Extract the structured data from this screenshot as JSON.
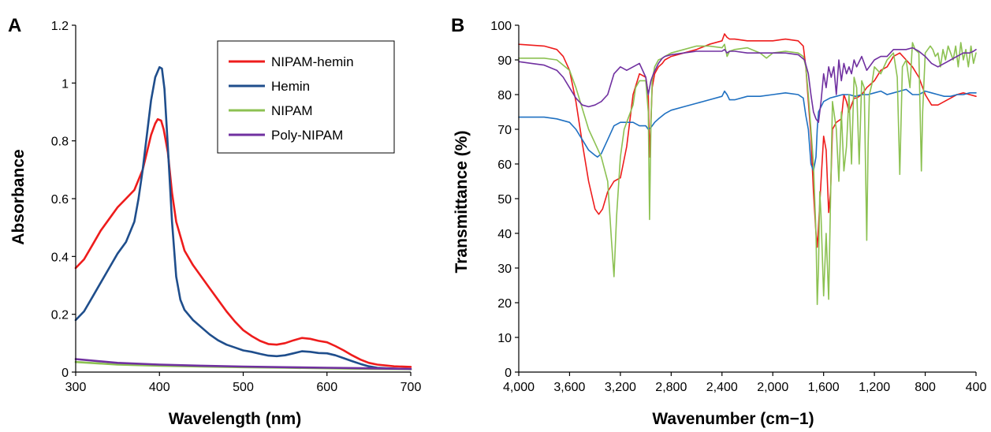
{
  "chart_data": [
    {
      "panel": "A",
      "type": "line",
      "xlabel": "Wavelength (nm)",
      "ylabel": "Absorbance",
      "xlim": [
        300,
        700
      ],
      "ylim": [
        0,
        1.2
      ],
      "x_ticks": [
        "300",
        "400",
        "500",
        "600",
        "700"
      ],
      "y_ticks": [
        "0",
        "0.2",
        "0.4",
        "0.6",
        "0.8",
        "1",
        "1.2"
      ],
      "legend": "top-right",
      "series": [
        {
          "name": "NIPAM-hemin",
          "color": "#ee1c1c",
          "x": [
            300,
            310,
            320,
            330,
            340,
            350,
            360,
            370,
            380,
            385,
            390,
            395,
            398,
            402,
            405,
            410,
            415,
            420,
            430,
            440,
            450,
            460,
            470,
            480,
            490,
            500,
            510,
            520,
            530,
            540,
            550,
            560,
            570,
            580,
            590,
            600,
            610,
            620,
            630,
            640,
            650,
            660,
            680,
            700
          ],
          "y": [
            0.36,
            0.39,
            0.44,
            0.49,
            0.53,
            0.57,
            0.6,
            0.63,
            0.7,
            0.76,
            0.82,
            0.86,
            0.875,
            0.87,
            0.84,
            0.76,
            0.62,
            0.52,
            0.42,
            0.37,
            0.33,
            0.29,
            0.25,
            0.21,
            0.175,
            0.145,
            0.125,
            0.108,
            0.097,
            0.095,
            0.1,
            0.11,
            0.118,
            0.115,
            0.108,
            0.103,
            0.09,
            0.075,
            0.058,
            0.043,
            0.032,
            0.026,
            0.02,
            0.018
          ]
        },
        {
          "name": "Hemin",
          "color": "#1f4e8c",
          "x": [
            300,
            310,
            320,
            330,
            340,
            350,
            360,
            370,
            375,
            380,
            385,
            390,
            395,
            400,
            403,
            406,
            410,
            415,
            420,
            425,
            430,
            440,
            450,
            460,
            470,
            480,
            490,
            500,
            510,
            520,
            530,
            540,
            550,
            560,
            570,
            580,
            590,
            600,
            610,
            620,
            630,
            640,
            650,
            660,
            680,
            700
          ],
          "y": [
            0.18,
            0.21,
            0.26,
            0.31,
            0.36,
            0.41,
            0.45,
            0.52,
            0.6,
            0.7,
            0.82,
            0.94,
            1.02,
            1.055,
            1.05,
            0.98,
            0.78,
            0.52,
            0.33,
            0.25,
            0.215,
            0.18,
            0.155,
            0.13,
            0.11,
            0.095,
            0.085,
            0.075,
            0.07,
            0.063,
            0.057,
            0.055,
            0.058,
            0.065,
            0.072,
            0.07,
            0.066,
            0.065,
            0.058,
            0.048,
            0.038,
            0.028,
            0.02,
            0.015,
            0.012,
            0.01
          ]
        },
        {
          "name": "NIPAM",
          "color": "#8cc152",
          "x": [
            300,
            350,
            400,
            450,
            500,
            550,
            600,
            650,
            700
          ],
          "y": [
            0.035,
            0.026,
            0.022,
            0.019,
            0.017,
            0.015,
            0.013,
            0.011,
            0.01
          ]
        },
        {
          "name": "Poly-NIPAM",
          "color": "#7030a0",
          "x": [
            300,
            350,
            400,
            450,
            500,
            550,
            600,
            650,
            700
          ],
          "y": [
            0.045,
            0.032,
            0.026,
            0.022,
            0.019,
            0.017,
            0.015,
            0.013,
            0.011
          ]
        }
      ]
    },
    {
      "panel": "B",
      "type": "line",
      "xlabel": "Wavenumber (cm−1)",
      "ylabel": "Transmittance (%)",
      "xlim": [
        4000,
        400
      ],
      "x_reversed": true,
      "ylim": [
        0,
        100
      ],
      "x_ticks": [
        "4,000",
        "3,600",
        "3,200",
        "2,800",
        "2,400",
        "2,000",
        "1,600",
        "1,200",
        "800",
        "400"
      ],
      "y_ticks": [
        "0",
        "10",
        "20",
        "30",
        "40",
        "50",
        "60",
        "70",
        "80",
        "90",
        "100"
      ],
      "series": [
        {
          "color": "#ee1c1c",
          "x": [
            4000,
            3800,
            3700,
            3650,
            3600,
            3550,
            3500,
            3450,
            3400,
            3370,
            3340,
            3300,
            3250,
            3200,
            3150,
            3100,
            3050,
            3000,
            2980,
            2970,
            2960,
            2950,
            2930,
            2900,
            2870,
            2850,
            2800,
            2700,
            2600,
            2500,
            2400,
            2380,
            2360,
            2340,
            2300,
            2200,
            2100,
            2000,
            1900,
            1800,
            1760,
            1740,
            1720,
            1700,
            1680,
            1660,
            1650,
            1640,
            1620,
            1600,
            1580,
            1560,
            1545,
            1530,
            1500,
            1460,
            1440,
            1420,
            1400,
            1380,
            1360,
            1340,
            1300,
            1260,
            1200,
            1150,
            1100,
            1050,
            1000,
            950,
            900,
            850,
            800,
            750,
            700,
            650,
            600,
            550,
            500,
            450,
            400
          ],
          "y": [
            94.5,
            94,
            93,
            91,
            87,
            78,
            66,
            55,
            47,
            45.5,
            47,
            52,
            55,
            56,
            65,
            80,
            86,
            85,
            80,
            62,
            72,
            82,
            86,
            88,
            89,
            90,
            91,
            92,
            93,
            94.5,
            95.5,
            97.5,
            96.5,
            96,
            96,
            95.5,
            95.5,
            95.5,
            96,
            95.5,
            94,
            88,
            78,
            68,
            52,
            40,
            36,
            42,
            55,
            68,
            64,
            46,
            52,
            70,
            72,
            73,
            80,
            78,
            75,
            77,
            79,
            79,
            80,
            82,
            84,
            87,
            88,
            91,
            92,
            90,
            88,
            85,
            80,
            77,
            77,
            78,
            79,
            80,
            80.5,
            80,
            79.5
          ]
        },
        {
          "color": "#1f70c1",
          "x": [
            4000,
            3900,
            3800,
            3700,
            3600,
            3550,
            3500,
            3450,
            3400,
            3380,
            3350,
            3300,
            3250,
            3200,
            3150,
            3100,
            3050,
            3000,
            2980,
            2960,
            2950,
            2930,
            2900,
            2850,
            2800,
            2700,
            2600,
            2500,
            2400,
            2380,
            2360,
            2340,
            2300,
            2200,
            2100,
            2000,
            1900,
            1800,
            1760,
            1740,
            1720,
            1700,
            1680,
            1660,
            1650,
            1640,
            1600,
            1550,
            1500,
            1450,
            1400,
            1350,
            1300,
            1250,
            1200,
            1150,
            1100,
            1050,
            1000,
            950,
            900,
            850,
            800,
            750,
            700,
            650,
            600,
            550,
            500,
            450,
            400
          ],
          "y": [
            73.5,
            73.5,
            73.5,
            73,
            72,
            70,
            67,
            64,
            62.5,
            62,
            63,
            67,
            71,
            72,
            72,
            72,
            71,
            71,
            70,
            70.5,
            71,
            72,
            73,
            74.5,
            75.5,
            76.5,
            77.5,
            78.5,
            79.5,
            81,
            80,
            78.5,
            78.5,
            79.5,
            79.5,
            80,
            80.5,
            80,
            79,
            74,
            70,
            60,
            58,
            62,
            70,
            75,
            78,
            79,
            79.5,
            80,
            80,
            79.5,
            80,
            80,
            80.5,
            81,
            80,
            80.5,
            81,
            81.5,
            80,
            80,
            81,
            80.5,
            80,
            79.5,
            79.5,
            80,
            80,
            80.5,
            80.5
          ]
        },
        {
          "color": "#8cc152",
          "x": [
            4000,
            3900,
            3800,
            3700,
            3600,
            3550,
            3500,
            3450,
            3400,
            3350,
            3300,
            3270,
            3250,
            3230,
            3200,
            3170,
            3150,
            3100,
            3080,
            3050,
            3000,
            2980,
            2970,
            2960,
            2950,
            2930,
            2900,
            2870,
            2850,
            2800,
            2700,
            2600,
            2500,
            2400,
            2380,
            2360,
            2340,
            2300,
            2200,
            2100,
            2050,
            2000,
            1900,
            1800,
            1760,
            1740,
            1720,
            1700,
            1680,
            1660,
            1650,
            1640,
            1630,
            1620,
            1600,
            1580,
            1560,
            1545,
            1530,
            1500,
            1480,
            1460,
            1440,
            1420,
            1400,
            1380,
            1360,
            1340,
            1320,
            1300,
            1280,
            1260,
            1250,
            1240,
            1220,
            1200,
            1150,
            1100,
            1050,
            1020,
            1000,
            980,
            950,
            920,
            900,
            880,
            850,
            830,
            820,
            800,
            780,
            760,
            740,
            720,
            700,
            680,
            660,
            640,
            620,
            600,
            580,
            560,
            540,
            520,
            500,
            480,
            460,
            440,
            420,
            400
          ],
          "y": [
            90.5,
            90.5,
            90.5,
            90,
            87,
            82,
            76,
            70,
            66,
            62,
            55,
            38,
            27.5,
            45,
            62,
            70,
            72,
            77,
            82,
            84,
            84,
            75,
            44,
            70,
            84,
            88,
            90,
            90.5,
            91,
            92,
            93,
            94,
            94,
            93.5,
            94.5,
            91,
            92.5,
            93,
            93.5,
            92,
            90.5,
            92,
            92.5,
            92,
            91,
            88,
            80,
            70,
            60,
            40,
            19.5,
            30,
            52,
            45,
            22,
            40,
            21,
            50,
            78,
            70,
            55,
            75,
            58,
            65,
            80,
            60,
            85,
            82,
            60,
            84,
            82,
            38,
            65,
            80,
            83,
            88,
            86,
            90,
            92,
            85,
            57,
            88,
            90,
            82,
            95,
            93,
            92,
            58,
            75,
            92,
            93,
            94,
            93,
            91,
            92,
            88,
            93,
            90,
            94,
            92,
            90,
            94,
            88,
            95,
            90,
            93,
            88,
            94,
            89,
            92
          ]
        },
        {
          "color": "#7030a0",
          "x": [
            4000,
            3900,
            3800,
            3700,
            3650,
            3600,
            3550,
            3500,
            3450,
            3400,
            3350,
            3300,
            3250,
            3200,
            3150,
            3100,
            3050,
            3000,
            2980,
            2960,
            2940,
            2900,
            2870,
            2850,
            2800,
            2700,
            2600,
            2500,
            2400,
            2380,
            2360,
            2340,
            2300,
            2200,
            2100,
            2000,
            1900,
            1800,
            1750,
            1720,
            1700,
            1680,
            1660,
            1640,
            1620,
            1600,
            1580,
            1560,
            1540,
            1520,
            1500,
            1480,
            1460,
            1440,
            1420,
            1400,
            1380,
            1360,
            1340,
            1300,
            1260,
            1200,
            1150,
            1100,
            1050,
            1000,
            950,
            900,
            850,
            800,
            750,
            700,
            650,
            600,
            550,
            500,
            450,
            420,
            400
          ],
          "y": [
            89.5,
            89,
            88.5,
            87,
            85,
            82,
            79,
            77,
            76.5,
            77,
            78,
            80,
            86,
            88,
            87,
            88,
            89,
            85,
            80,
            84,
            86,
            89,
            90.5,
            91,
            91.5,
            92,
            92.5,
            92.5,
            92.5,
            93,
            92,
            92.5,
            92.5,
            92,
            92,
            92,
            92,
            91.5,
            90,
            86,
            80,
            75,
            73,
            72,
            78,
            86,
            82,
            88,
            85,
            88,
            80,
            90,
            84,
            89,
            86,
            88,
            86,
            90,
            88,
            91,
            87,
            90,
            91,
            91,
            93,
            93,
            93,
            93.5,
            92.5,
            91,
            89,
            88,
            89,
            90,
            91,
            92,
            92,
            92.5,
            93
          ]
        }
      ]
    }
  ]
}
